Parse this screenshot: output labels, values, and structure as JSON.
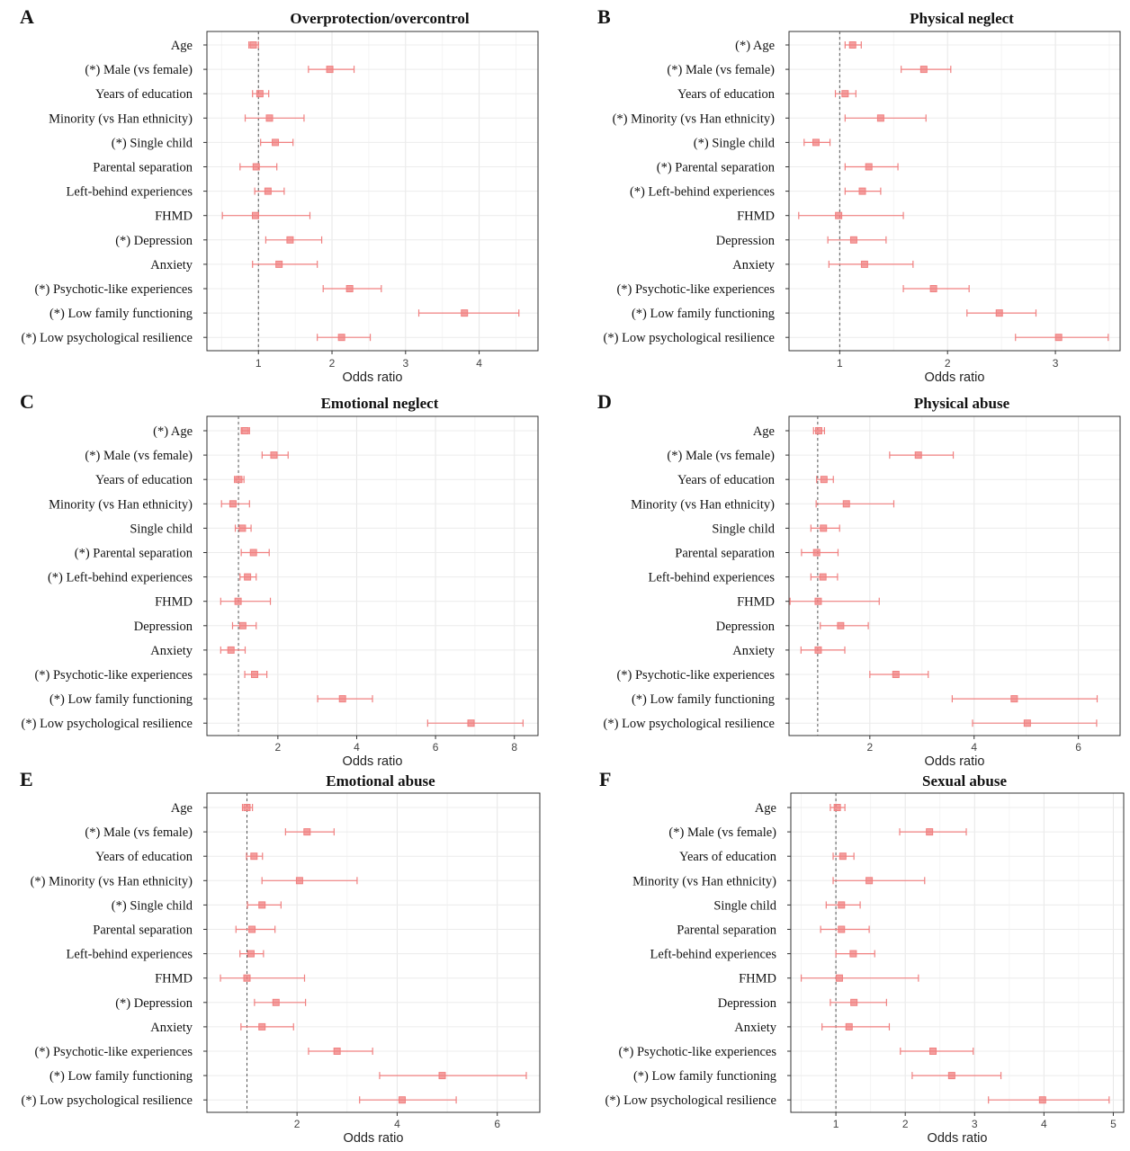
{
  "figure": {
    "point_color": "#f08080",
    "refline_color": "#555555"
  },
  "chart_data": [
    {
      "type": "forest",
      "panel_letter": "A",
      "title": "Overprotection/overcontrol",
      "xlabel": "Odds ratio",
      "xlim": [
        0.3,
        4.8
      ],
      "xticks": [
        1,
        2,
        3,
        4
      ],
      "reference_line": 1,
      "grid": true,
      "rows": [
        {
          "label": "Age",
          "or": 0.93,
          "lo": 0.87,
          "hi": 1.0
        },
        {
          "label": "(*) Male (vs female)",
          "or": 1.97,
          "lo": 1.68,
          "hi": 2.3
        },
        {
          "label": "Years of education",
          "or": 1.02,
          "lo": 0.92,
          "hi": 1.14
        },
        {
          "label": "Minority (vs Han ethnicity)",
          "or": 1.15,
          "lo": 0.82,
          "hi": 1.62
        },
        {
          "label": "(*) Single child",
          "or": 1.23,
          "lo": 1.03,
          "hi": 1.47
        },
        {
          "label": "Parental separation",
          "or": 0.97,
          "lo": 0.75,
          "hi": 1.25
        },
        {
          "label": "Left-behind experiences",
          "or": 1.13,
          "lo": 0.95,
          "hi": 1.35
        },
        {
          "label": "FHMD",
          "or": 0.96,
          "lo": 0.51,
          "hi": 1.7
        },
        {
          "label": "(*) Depression",
          "or": 1.43,
          "lo": 1.1,
          "hi": 1.86
        },
        {
          "label": "Anxiety",
          "or": 1.28,
          "lo": 0.92,
          "hi": 1.8
        },
        {
          "label": "(*) Psychotic-like experiences",
          "or": 2.24,
          "lo": 1.88,
          "hi": 2.67
        },
        {
          "label": "(*) Low family functioning",
          "or": 3.8,
          "lo": 3.18,
          "hi": 4.54
        },
        {
          "label": "(*) Low psychological resilience",
          "or": 2.13,
          "lo": 1.8,
          "hi": 2.52
        }
      ]
    },
    {
      "type": "forest",
      "panel_letter": "B",
      "title": "Physical neglect",
      "xlabel": "Odds ratio",
      "xlim": [
        0.53,
        3.6
      ],
      "xticks": [
        1,
        2,
        3
      ],
      "reference_line": 1,
      "grid": true,
      "rows": [
        {
          "label": "(*) Age",
          "or": 1.12,
          "lo": 1.05,
          "hi": 1.2
        },
        {
          "label": "(*) Male (vs female)",
          "or": 1.78,
          "lo": 1.57,
          "hi": 2.03
        },
        {
          "label": "Years of education",
          "or": 1.05,
          "lo": 0.96,
          "hi": 1.15
        },
        {
          "label": "(*) Minority (vs Han ethnicity)",
          "or": 1.38,
          "lo": 1.05,
          "hi": 1.8
        },
        {
          "label": "(*) Single child",
          "or": 0.78,
          "lo": 0.67,
          "hi": 0.91
        },
        {
          "label": "(*) Parental separation",
          "or": 1.27,
          "lo": 1.05,
          "hi": 1.54
        },
        {
          "label": "(*) Left-behind experiences",
          "or": 1.21,
          "lo": 1.05,
          "hi": 1.38
        },
        {
          "label": "FHMD",
          "or": 0.99,
          "lo": 0.62,
          "hi": 1.59
        },
        {
          "label": "Depression",
          "or": 1.13,
          "lo": 0.89,
          "hi": 1.43
        },
        {
          "label": "Anxiety",
          "or": 1.23,
          "lo": 0.9,
          "hi": 1.68
        },
        {
          "label": "(*) Psychotic-like experiences",
          "or": 1.87,
          "lo": 1.59,
          "hi": 2.2
        },
        {
          "label": "(*) Low family functioning",
          "or": 2.48,
          "lo": 2.18,
          "hi": 2.82
        },
        {
          "label": "(*) Low psychological resilience",
          "or": 3.03,
          "lo": 2.63,
          "hi": 3.49
        }
      ]
    },
    {
      "type": "forest",
      "panel_letter": "C",
      "title": "Emotional neglect",
      "xlabel": "Odds ratio",
      "xlim": [
        0.2,
        8.6
      ],
      "xticks": [
        2,
        4,
        6,
        8
      ],
      "reference_line": 1,
      "grid": true,
      "rows": [
        {
          "label": "(*) Age",
          "or": 1.17,
          "lo": 1.07,
          "hi": 1.28
        },
        {
          "label": "(*) Male (vs female)",
          "or": 1.9,
          "lo": 1.6,
          "hi": 2.26
        },
        {
          "label": "Years of education",
          "or": 1.01,
          "lo": 0.9,
          "hi": 1.14
        },
        {
          "label": "Minority (vs Han ethnicity)",
          "or": 0.86,
          "lo": 0.57,
          "hi": 1.28
        },
        {
          "label": "Single child",
          "or": 1.1,
          "lo": 0.92,
          "hi": 1.32
        },
        {
          "label": "(*) Parental separation",
          "or": 1.38,
          "lo": 1.07,
          "hi": 1.78
        },
        {
          "label": "(*) Left-behind experiences",
          "or": 1.23,
          "lo": 1.04,
          "hi": 1.45
        },
        {
          "label": "FHMD",
          "or": 0.99,
          "lo": 0.55,
          "hi": 1.81
        },
        {
          "label": "Depression",
          "or": 1.11,
          "lo": 0.85,
          "hi": 1.45
        },
        {
          "label": "Anxiety",
          "or": 0.81,
          "lo": 0.55,
          "hi": 1.17
        },
        {
          "label": "(*) Psychotic-like experiences",
          "or": 1.41,
          "lo": 1.16,
          "hi": 1.72
        },
        {
          "label": "(*) Low family functioning",
          "or": 3.64,
          "lo": 3.01,
          "hi": 4.4
        },
        {
          "label": "(*) Low psychological resilience",
          "or": 6.9,
          "lo": 5.8,
          "hi": 8.22
        }
      ]
    },
    {
      "type": "forest",
      "panel_letter": "D",
      "title": "Physical abuse",
      "xlabel": "Odds ratio",
      "xlim": [
        0.45,
        6.8
      ],
      "xticks": [
        2,
        4,
        6
      ],
      "reference_line": 1,
      "grid": true,
      "rows": [
        {
          "label": "Age",
          "or": 1.02,
          "lo": 0.92,
          "hi": 1.13
        },
        {
          "label": "(*) Male (vs female)",
          "or": 2.93,
          "lo": 2.38,
          "hi": 3.6
        },
        {
          "label": "Years of education",
          "or": 1.12,
          "lo": 0.98,
          "hi": 1.3
        },
        {
          "label": "Minority (vs Han ethnicity)",
          "or": 1.55,
          "lo": 0.97,
          "hi": 2.46
        },
        {
          "label": "Single child",
          "or": 1.11,
          "lo": 0.87,
          "hi": 1.42
        },
        {
          "label": "Parental separation",
          "or": 0.98,
          "lo": 0.69,
          "hi": 1.39
        },
        {
          "label": "Left-behind experiences",
          "or": 1.1,
          "lo": 0.87,
          "hi": 1.38
        },
        {
          "label": "FHMD",
          "or": 1.01,
          "lo": 0.47,
          "hi": 2.18
        },
        {
          "label": "Depression",
          "or": 1.44,
          "lo": 1.05,
          "hi": 1.97
        },
        {
          "label": "Anxiety",
          "or": 1.01,
          "lo": 0.68,
          "hi": 1.52
        },
        {
          "label": "(*) Psychotic-like experiences",
          "or": 2.5,
          "lo": 2.0,
          "hi": 3.12
        },
        {
          "label": "(*) Low family functioning",
          "or": 4.77,
          "lo": 3.58,
          "hi": 6.36
        },
        {
          "label": "(*) Low psychological resilience",
          "or": 5.02,
          "lo": 3.97,
          "hi": 6.35
        }
      ]
    },
    {
      "type": "forest",
      "panel_letter": "E",
      "title": "Emotional abuse",
      "xlabel": "Odds ratio",
      "xlim": [
        0.2,
        6.85
      ],
      "xticks": [
        2,
        4,
        6
      ],
      "reference_line": 1,
      "grid": true,
      "rows": [
        {
          "label": "Age",
          "or": 1.0,
          "lo": 0.91,
          "hi": 1.11
        },
        {
          "label": "(*) Male (vs female)",
          "or": 2.2,
          "lo": 1.77,
          "hi": 2.74
        },
        {
          "label": "Years of education",
          "or": 1.14,
          "lo": 0.99,
          "hi": 1.31
        },
        {
          "label": "(*) Minority (vs Han ethnicity)",
          "or": 2.05,
          "lo": 1.3,
          "hi": 3.2
        },
        {
          "label": "(*) Single child",
          "or": 1.3,
          "lo": 1.01,
          "hi": 1.68
        },
        {
          "label": "Parental separation",
          "or": 1.1,
          "lo": 0.78,
          "hi": 1.56
        },
        {
          "label": "Left-behind experiences",
          "or": 1.08,
          "lo": 0.86,
          "hi": 1.33
        },
        {
          "label": "FHMD",
          "or": 1.0,
          "lo": 0.47,
          "hi": 2.15
        },
        {
          "label": "(*) Depression",
          "or": 1.58,
          "lo": 1.15,
          "hi": 2.17
        },
        {
          "label": "Anxiety",
          "or": 1.3,
          "lo": 0.88,
          "hi": 1.93
        },
        {
          "label": "(*) Psychotic-like experiences",
          "or": 2.8,
          "lo": 2.23,
          "hi": 3.51
        },
        {
          "label": "(*) Low family functioning",
          "or": 4.9,
          "lo": 3.65,
          "hi": 6.58
        },
        {
          "label": "(*) Low psychological resilience",
          "or": 4.1,
          "lo": 3.25,
          "hi": 5.18
        }
      ]
    },
    {
      "type": "forest",
      "panel_letter": "F",
      "title": "Sexual abuse",
      "xlabel": "Odds ratio",
      "xlim": [
        0.35,
        5.15
      ],
      "xticks": [
        1,
        2,
        3,
        4,
        5
      ],
      "reference_line": 1,
      "grid": true,
      "rows": [
        {
          "label": "Age",
          "or": 1.02,
          "lo": 0.92,
          "hi": 1.13
        },
        {
          "label": "(*) Male (vs female)",
          "or": 2.35,
          "lo": 1.92,
          "hi": 2.88
        },
        {
          "label": "Years of education",
          "or": 1.1,
          "lo": 0.96,
          "hi": 1.26
        },
        {
          "label": "Minority (vs Han ethnicity)",
          "or": 1.48,
          "lo": 0.96,
          "hi": 2.28
        },
        {
          "label": "Single child",
          "or": 1.08,
          "lo": 0.86,
          "hi": 1.35
        },
        {
          "label": "Parental separation",
          "or": 1.08,
          "lo": 0.78,
          "hi": 1.48
        },
        {
          "label": "Left-behind experiences",
          "or": 1.25,
          "lo": 1.0,
          "hi": 1.56
        },
        {
          "label": "FHMD",
          "or": 1.05,
          "lo": 0.5,
          "hi": 2.19
        },
        {
          "label": "Depression",
          "or": 1.26,
          "lo": 0.92,
          "hi": 1.73
        },
        {
          "label": "Anxiety",
          "or": 1.19,
          "lo": 0.8,
          "hi": 1.77
        },
        {
          "label": "(*) Psychotic-like experiences",
          "or": 2.4,
          "lo": 1.93,
          "hi": 2.98
        },
        {
          "label": "(*) Low family functioning",
          "or": 2.67,
          "lo": 2.1,
          "hi": 3.38
        },
        {
          "label": "(*) Low psychological resilience",
          "or": 3.98,
          "lo": 3.2,
          "hi": 4.94
        }
      ]
    }
  ]
}
